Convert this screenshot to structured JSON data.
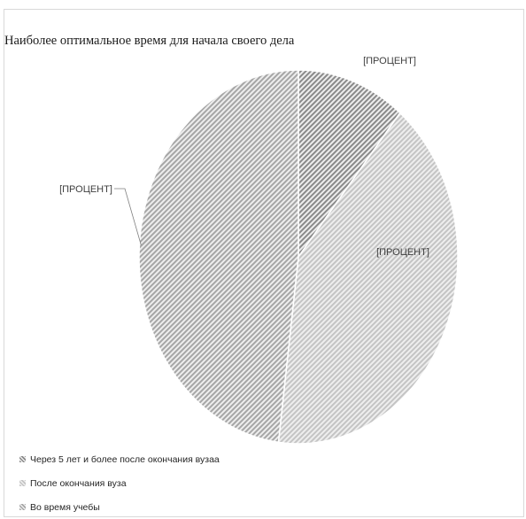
{
  "chart_data": {
    "type": "pie",
    "title": "Наиболее оптимальное время для начала своего дела",
    "slices": [
      {
        "name": "Через 5 лет и более после окончания вузаа",
        "value": 11,
        "label": "[ПРОЦЕНТ]",
        "color": "#8a8a8a"
      },
      {
        "name": "После окончания вуза",
        "value": 41,
        "label": "[ПРОЦЕНТ]",
        "color": "#c4c4c4"
      },
      {
        "name": "Во время учебы",
        "value": 48,
        "label": "[ПРОЦЕНТ]",
        "color": "#a6a6a6"
      }
    ],
    "legend_position": "bottom-left",
    "start_angle": "12 o'clock, clockwise"
  }
}
